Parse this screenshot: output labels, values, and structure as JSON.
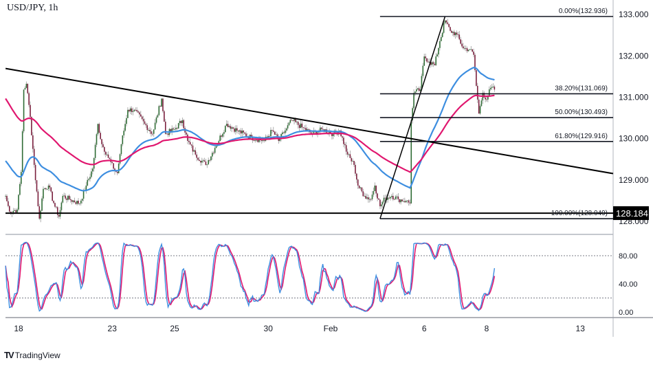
{
  "header": {
    "title": "USD/JPY, 1h"
  },
  "branding": {
    "logo_text": "TradingView"
  },
  "colors": {
    "bull": "#2e6b34",
    "bear": "#7a1f3d",
    "wick": "#9a9a9a",
    "ma_fast": "#3d8ee0",
    "ma_slow": "#e0176f",
    "stoch_k": "#3d8ee0",
    "stoch_d": "#e0176f",
    "line": "#000000"
  },
  "chart_data": {
    "type": "candlestick",
    "symbol": "USD/JPY",
    "interval": "1h",
    "price_axis": {
      "ticks": [
        "133.000",
        "132.000",
        "131.000",
        "130.000",
        "129.000",
        "128.000"
      ],
      "range": [
        127.75,
        133.4
      ]
    },
    "time_axis": {
      "ticks": [
        "18",
        "23",
        "25",
        "30",
        "Feb",
        "6",
        "8",
        "13"
      ]
    },
    "last_price_label": "128.184",
    "close_path": [
      [
        "Jan 17 14:00",
        128.6
      ],
      [
        "Jan 17 17:00",
        128.22
      ],
      [
        "Jan 17 23:00",
        128.27
      ],
      [
        "Jan 18 02:00",
        129.18
      ],
      [
        "Jan 18 04:00",
        131.17
      ],
      [
        "Jan 18 06:00",
        131.31
      ],
      [
        "Jan 18 09:00",
        130.51
      ],
      [
        "Jan 18 12:00",
        129.35
      ],
      [
        "Jan 18 15:00",
        128.35
      ],
      [
        "Jan 18 16:00",
        128.05
      ],
      [
        "Jan 18 19:00",
        128.77
      ],
      [
        "Jan 18 23:00",
        128.85
      ],
      [
        "Jan 19 03:00",
        128.43
      ],
      [
        "Jan 19 07:00",
        128.1
      ],
      [
        "Jan 19 10:00",
        128.6
      ],
      [
        "Jan 19 15:00",
        128.52
      ],
      [
        "Jan 19 23:00",
        128.42
      ],
      [
        "Jan 20 04:00",
        128.85
      ],
      [
        "Jan 20 09:00",
        129.26
      ],
      [
        "Jan 20 13:00",
        130.34
      ],
      [
        "Jan 20 16:00",
        129.85
      ],
      [
        "Jan 20 20:00",
        129.6
      ],
      [
        "Jan 23 01:00",
        129.26
      ],
      [
        "Jan 23 04:00",
        129.15
      ],
      [
        "Jan 23 07:00",
        129.85
      ],
      [
        "Jan 23 12:00",
        130.68
      ],
      [
        "Jan 23 17:00",
        130.68
      ],
      [
        "Jan 24 01:00",
        130.34
      ],
      [
        "Jan 24 07:00",
        130.1
      ],
      [
        "Jan 24 14:00",
        130.95
      ],
      [
        "Jan 24 17:00",
        130.1
      ],
      [
        "Jan 25 00:00",
        130.21
      ],
      [
        "Jan 25 06:00",
        130.43
      ],
      [
        "Jan 25 10:00",
        129.93
      ],
      [
        "Jan 25 16:00",
        129.6
      ],
      [
        "Jan 26 00:00",
        129.35
      ],
      [
        "Jan 26 07:00",
        129.76
      ],
      [
        "Jan 26 16:00",
        130.34
      ],
      [
        "Jan 27 00:00",
        130.18
      ],
      [
        "Jan 27 11:00",
        130.01
      ],
      [
        "Jan 27 21:00",
        129.93
      ],
      [
        "Jan 30 03:00",
        130.18
      ],
      [
        "Jan 30 08:00",
        129.93
      ],
      [
        "Jan 30 13:00",
        130.18
      ],
      [
        "Jan 30 18:00",
        130.43
      ],
      [
        "Jan 31 02:00",
        130.26
      ],
      [
        "Jan 31 10:00",
        130.1
      ],
      [
        "Jan 31 18:00",
        130.21
      ],
      [
        "Feb 1 02:00",
        130.1
      ],
      [
        "Feb 1 07:00",
        130.18
      ],
      [
        "Feb 1 13:00",
        129.6
      ],
      [
        "Feb 1 18:00",
        129.35
      ],
      [
        "Feb 1 21:00",
        128.85
      ],
      [
        "Feb 2 02:00",
        128.6
      ],
      [
        "Feb 2 07:00",
        128.52
      ],
      [
        "Feb 2 10:00",
        128.85
      ],
      [
        "Feb 2 14:00",
        128.35
      ],
      [
        "Feb 2 18:00",
        128.55
      ],
      [
        "Feb 2 23:00",
        128.6
      ],
      [
        "Feb 3 04:00",
        128.52
      ],
      [
        "Feb 3 10:00",
        128.48
      ],
      [
        "Feb 3 13:00",
        128.42
      ],
      [
        "Feb 3 14:00",
        130.43
      ],
      [
        "Feb 3 16:00",
        131.09
      ],
      [
        "Feb 3 21:00",
        131.17
      ],
      [
        "Feb 6 00:00",
        131.97
      ],
      [
        "Feb 6 04:00",
        131.84
      ],
      [
        "Feb 6 08:00",
        131.76
      ],
      [
        "Feb 6 12:00",
        132.34
      ],
      [
        "Feb 6 16:00",
        132.84
      ],
      [
        "Feb 6 20:00",
        132.59
      ],
      [
        "Feb 7 01:00",
        132.5
      ],
      [
        "Feb 7 06:00",
        132.17
      ],
      [
        "Feb 7 11:00",
        132.14
      ],
      [
        "Feb 7 14:00",
        132.01
      ],
      [
        "Feb 7 16:00",
        131.26
      ],
      [
        "Feb 7 18:00",
        130.59
      ],
      [
        "Feb 7 21:00",
        131.09
      ],
      [
        "Feb 8 00:00",
        130.93
      ],
      [
        "Feb 8 03:00",
        131.21
      ],
      [
        "Feb 8 06:00",
        131.17
      ]
    ],
    "moving_averages": [
      {
        "color_key": "ma_fast",
        "period": 50,
        "start_value": 129.48
      },
      {
        "color_key": "ma_slow",
        "period": 100,
        "start_value": 131.0
      }
    ],
    "fibonacci": {
      "from": [
        "Feb 2 14:00",
        128.049
      ],
      "to": [
        "Feb 6 16:00",
        132.936
      ],
      "levels": [
        {
          "label": "0.00%(132.936)",
          "price": 132.936
        },
        {
          "label": "38.20%(131.069)",
          "price": 131.069
        },
        {
          "label": "50.00%(130.493)",
          "price": 130.493
        },
        {
          "label": "61.80%(129.916)",
          "price": 129.916
        },
        {
          "label": "100.00%(128.049)",
          "price": 128.049
        }
      ]
    },
    "trendline": {
      "start": [
        "Jan 17 14:00",
        131.68
      ],
      "end_price_at_axis": 129.14
    },
    "support_line": {
      "price": 128.184
    },
    "stochastic": {
      "ticks": [
        "80.00",
        "40.00",
        "0.00"
      ],
      "range": [
        0,
        100
      ],
      "bands": [
        80,
        20
      ]
    }
  }
}
